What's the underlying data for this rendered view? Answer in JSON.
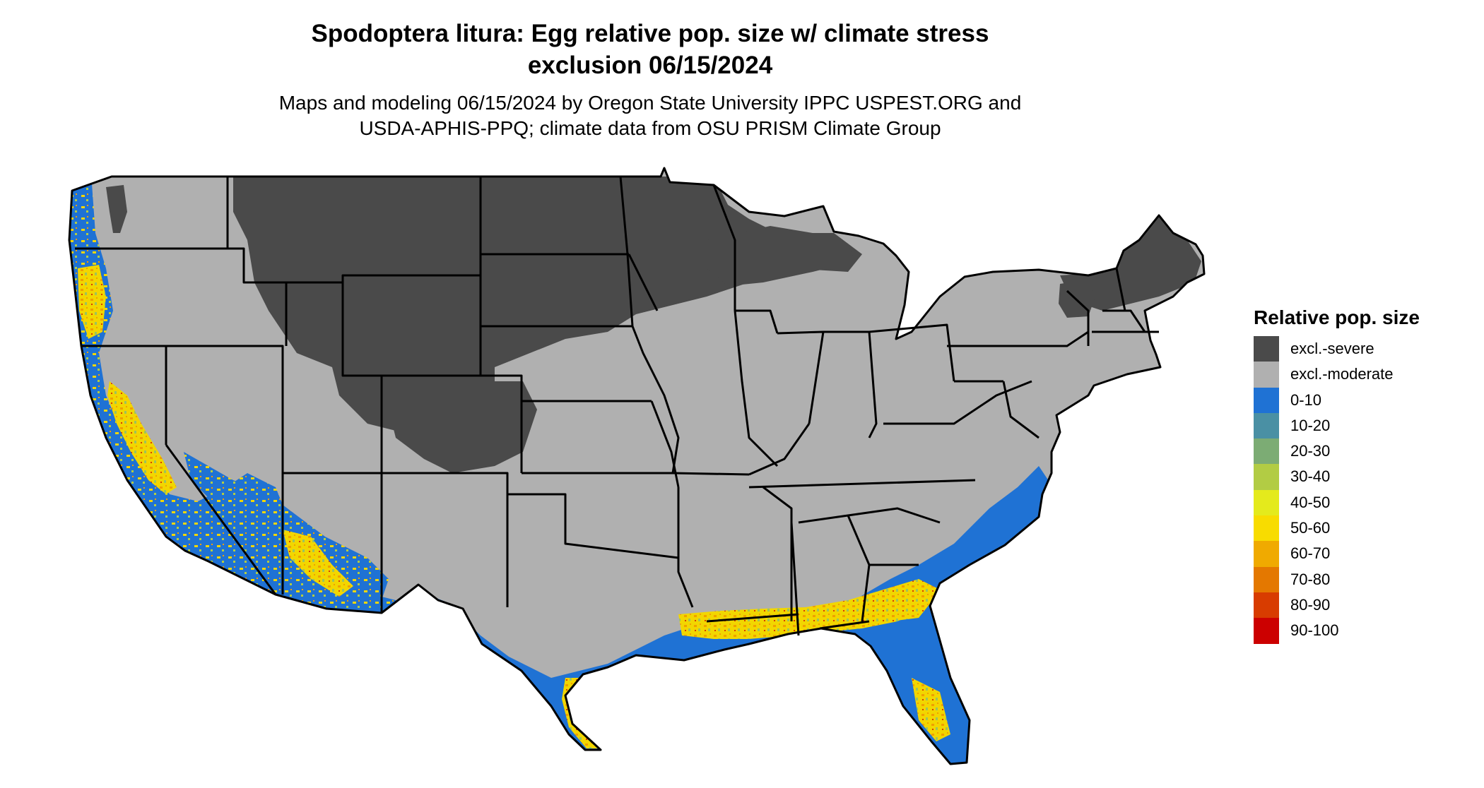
{
  "title": {
    "line1": "Spodoptera litura: Egg relative pop. size w/ climate stress",
    "line2": "exclusion 06/15/2024"
  },
  "subtitle": {
    "line1": "Maps and modeling 06/15/2024 by Oregon State University IPPC USPEST.ORG and",
    "line2": "USDA-APHIS-PPQ; climate data from OSU PRISM Climate Group"
  },
  "legend": {
    "title": "Relative pop. size",
    "items": [
      {
        "label": "excl.-severe",
        "color": "#4a4a4a"
      },
      {
        "label": "excl.-moderate",
        "color": "#b0b0b0"
      },
      {
        "label": "0-10",
        "color": "#1f72d4"
      },
      {
        "label": "10-20",
        "color": "#4a90a4"
      },
      {
        "label": "20-30",
        "color": "#7cac74"
      },
      {
        "label": "30-40",
        "color": "#b2cc44"
      },
      {
        "label": "40-50",
        "color": "#e4ea1c"
      },
      {
        "label": "50-60",
        "color": "#f8dc00"
      },
      {
        "label": "60-70",
        "color": "#f0aa00"
      },
      {
        "label": "70-80",
        "color": "#e47800"
      },
      {
        "label": "80-90",
        "color": "#d83c00"
      },
      {
        "label": "90-100",
        "color": "#cc0000"
      }
    ]
  },
  "map": {
    "region": "Contiguous United States",
    "zones": {
      "severe_exclusion_color": "#4a4a4a",
      "moderate_exclusion_color": "#b0b0b0",
      "low_color": "#1f72d4",
      "mid_color": "#f4d800",
      "high_color": "#f0a000",
      "border_color": "#000000",
      "background_color": "#ffffff"
    }
  }
}
